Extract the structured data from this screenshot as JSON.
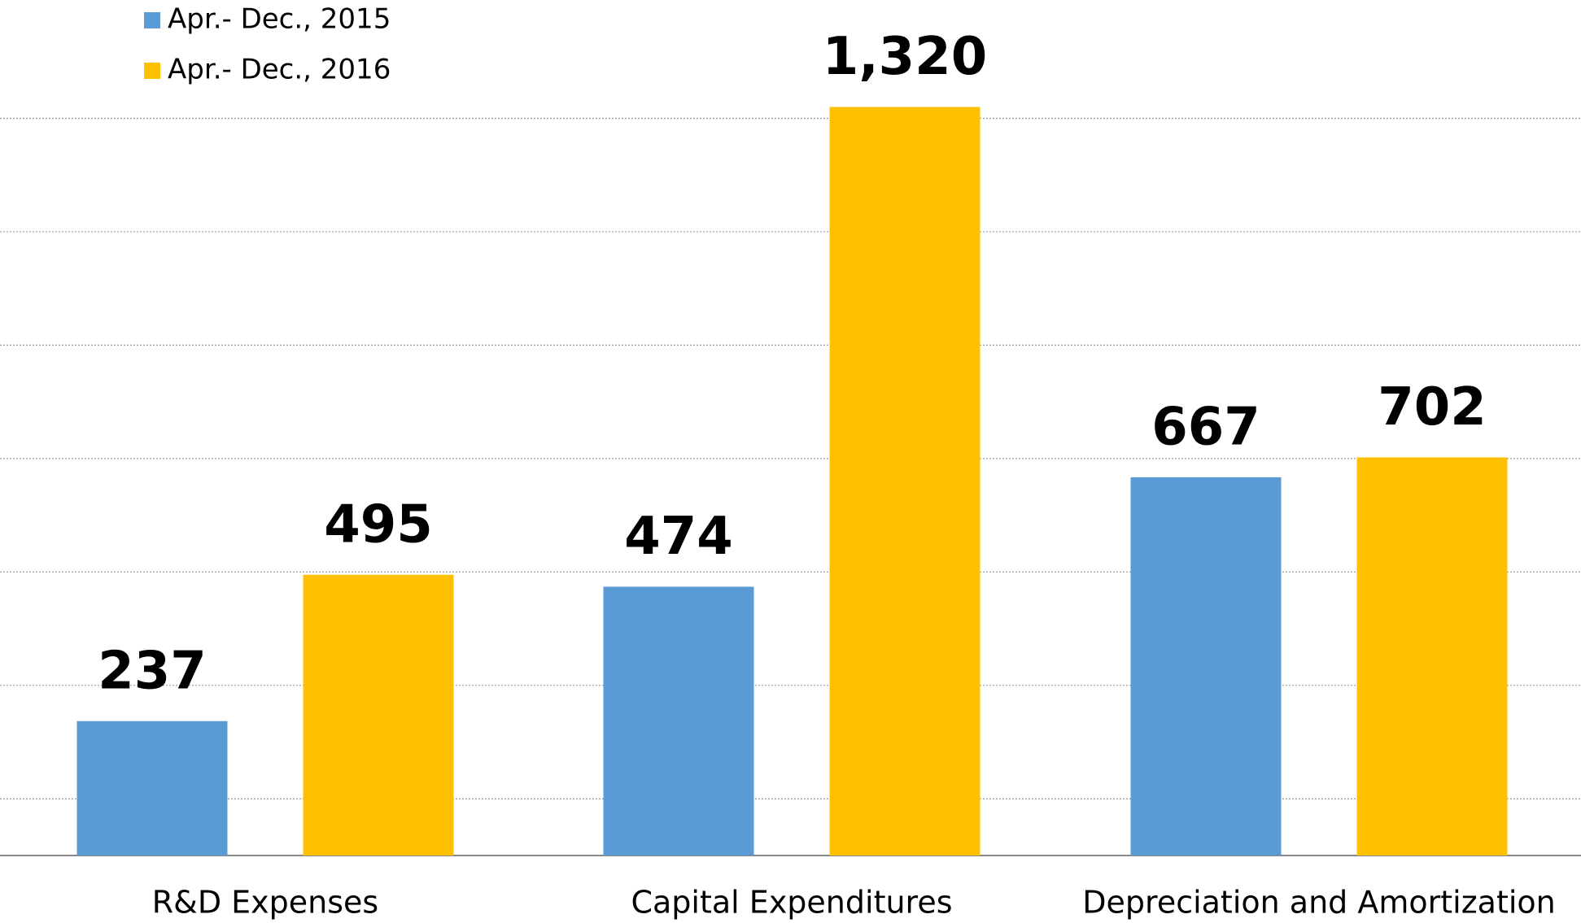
{
  "chart_data": {
    "type": "bar",
    "categories": [
      "R&D Expenses",
      "Capital Expenditures",
      "Depreciation and Amortization"
    ],
    "series": [
      {
        "name": "Apr.- Dec., 2015",
        "color": "#5b9bd5",
        "values": [
          237,
          474,
          667
        ],
        "value_labels": [
          "237",
          "474",
          "667"
        ]
      },
      {
        "name": "Apr.- Dec., 2016",
        "color": "#ffc000",
        "values": [
          495,
          1320,
          702
        ],
        "value_labels": [
          "495",
          "1,320",
          "702"
        ]
      }
    ],
    "ylim": [
      0,
      1500
    ],
    "yticks": [
      100,
      300,
      500,
      700,
      900,
      1100,
      1300
    ],
    "grid": true,
    "legend": "top-left"
  }
}
